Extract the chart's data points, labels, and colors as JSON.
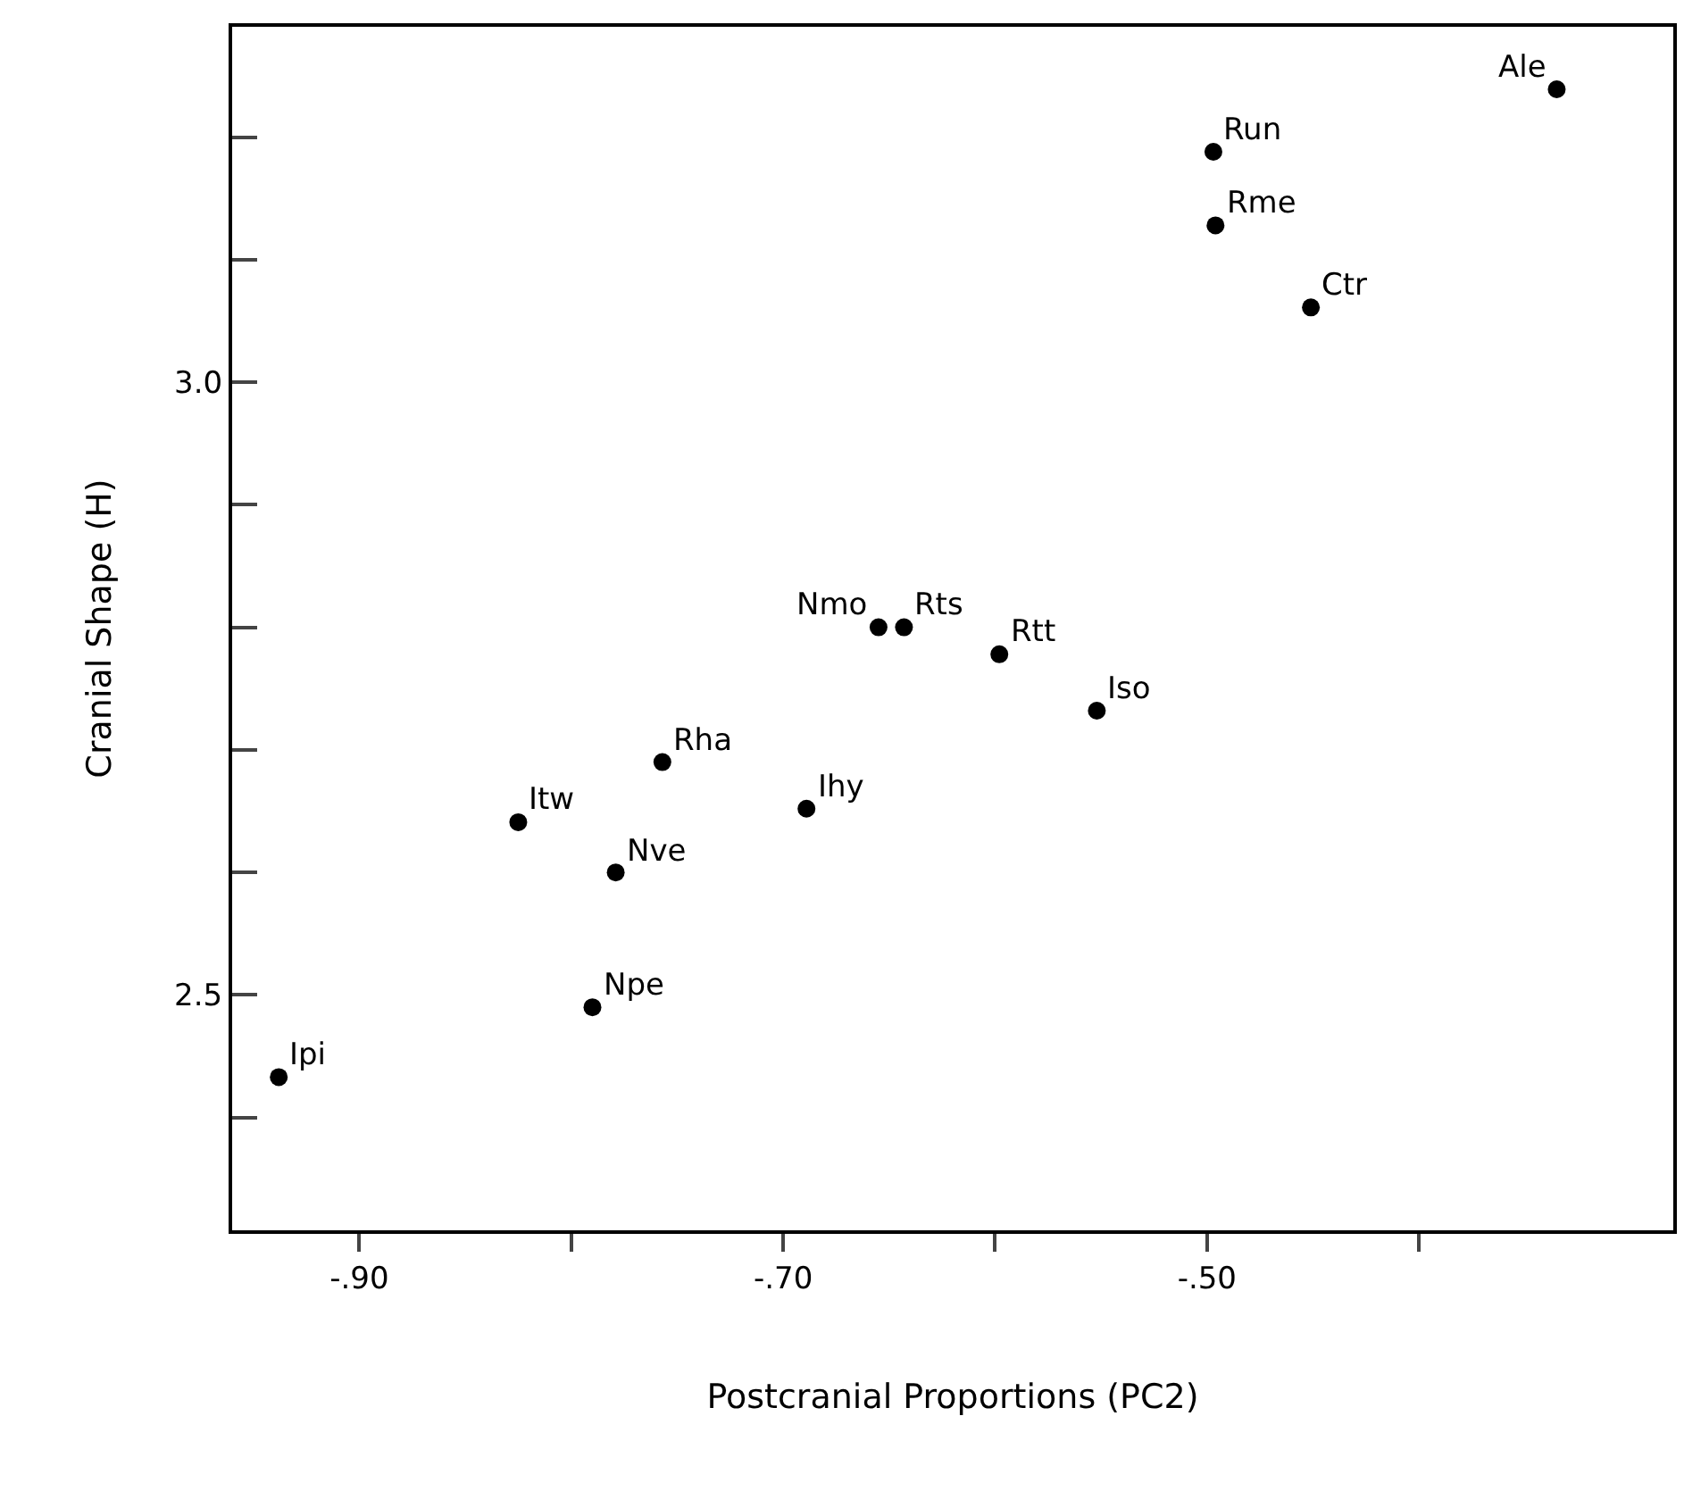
{
  "chart_data": {
    "type": "scatter",
    "xlabel": "Postcranial Proportions (PC2)",
    "ylabel": "Cranial Shape (H)",
    "x": [
      -0.938,
      -0.79,
      -0.825,
      -0.779,
      -0.757,
      -0.689,
      -0.655,
      -0.643,
      -0.598,
      -0.552,
      -0.497,
      -0.496,
      -0.451,
      -0.335
    ],
    "series": [
      {
        "color": "#000000",
        "values": [
          2.433,
          2.49,
          2.641,
          2.6,
          2.69,
          2.652,
          2.8,
          2.8,
          2.778,
          2.732,
          3.188,
          3.128,
          3.061,
          3.239
        ]
      }
    ],
    "annotations": [
      {
        "text": "Ipi",
        "x": -0.938,
        "y": 2.433
      },
      {
        "text": "Npe",
        "x": -0.79,
        "y": 2.49
      },
      {
        "text": "Itw",
        "x": -0.825,
        "y": 2.641
      },
      {
        "text": "Nve",
        "x": -0.779,
        "y": 2.6
      },
      {
        "text": "Rha",
        "x": -0.757,
        "y": 2.69
      },
      {
        "text": "Ihy",
        "x": -0.689,
        "y": 2.652
      },
      {
        "text": "Nmo",
        "x": -0.655,
        "y": 2.8
      },
      {
        "text": "Rts",
        "x": -0.643,
        "y": 2.8
      },
      {
        "text": "Rtt",
        "x": -0.598,
        "y": 2.778
      },
      {
        "text": "Iso",
        "x": -0.552,
        "y": 2.732
      },
      {
        "text": "Run",
        "x": -0.497,
        "y": 3.188
      },
      {
        "text": "Rme",
        "x": -0.496,
        "y": 3.128
      },
      {
        "text": "Ctr",
        "x": -0.451,
        "y": 3.061
      },
      {
        "text": "Ale",
        "x": -0.335,
        "y": 3.239
      }
    ],
    "xlim": [
      -0.96,
      -0.28
    ],
    "ylim": [
      2.308,
      3.29
    ],
    "xticks": [
      {
        "value": -0.9,
        "label": "-.90"
      },
      {
        "value": -0.8,
        "label": null
      },
      {
        "value": -0.7,
        "label": "-.70"
      },
      {
        "value": -0.6,
        "label": null
      },
      {
        "value": -0.5,
        "label": "-.50"
      },
      {
        "value": -0.4,
        "label": null
      }
    ],
    "yticks": [
      {
        "value": 2.4,
        "label": null
      },
      2.5,
      {
        "value": 2.6,
        "label": null
      },
      {
        "value": 2.7,
        "label": null
      },
      {
        "value": 2.8,
        "label": null
      },
      {
        "value": 2.9,
        "label": null
      },
      {
        "value": 3.0,
        "label": "3.0"
      },
      {
        "value": 3.1,
        "label": null
      },
      {
        "value": 3.2,
        "label": null
      }
    ],
    "marker": "circle"
  }
}
